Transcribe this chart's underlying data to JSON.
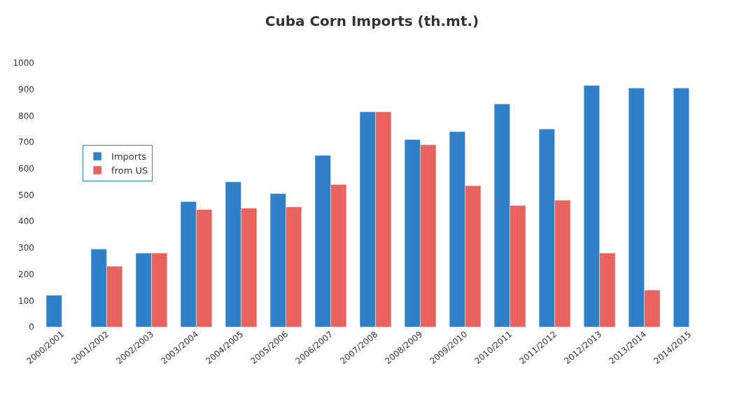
{
  "chart_data": {
    "type": "bar",
    "title": "Cuba Corn Imports (th.mt.)",
    "categories": [
      "2000/2001",
      "2001/2002",
      "2002/2003",
      "2003/2004",
      "2004/2005",
      "2005/2006",
      "2006/2007",
      "2007/2008",
      "2008/2009",
      "2009/2010",
      "2010/2011",
      "2011/2012",
      "2012/2013",
      "2013/2014",
      "2014/2015"
    ],
    "series": [
      {
        "name": "Imports",
        "color": "#2f80c8",
        "values": [
          120,
          295,
          280,
          475,
          550,
          505,
          650,
          815,
          710,
          740,
          845,
          750,
          915,
          905,
          905
        ]
      },
      {
        "name": "from US",
        "color": "#e8625e",
        "values": [
          null,
          230,
          280,
          445,
          450,
          455,
          540,
          815,
          690,
          535,
          460,
          480,
          280,
          140,
          null
        ]
      }
    ],
    "ylim": [
      0,
      1000
    ],
    "yticks": [
      0,
      100,
      200,
      300,
      400,
      500,
      600,
      700,
      800,
      900,
      1000
    ],
    "legend": "left"
  }
}
